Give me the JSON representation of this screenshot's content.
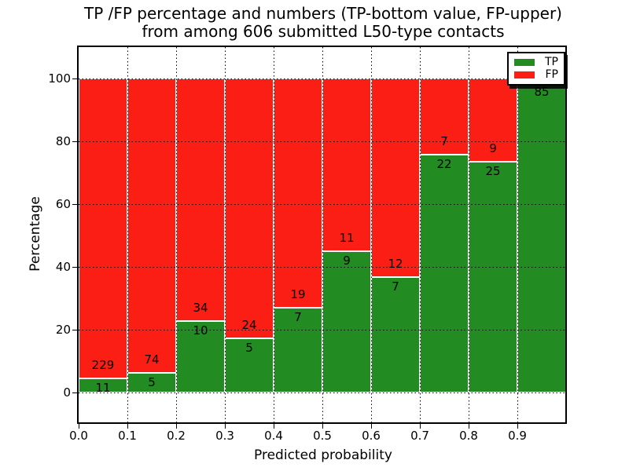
{
  "title": {
    "line1": "TP /FP percentage and numbers (TP-bottom value, FP-upper)",
    "line2": "from among 606 submitted L50-type contacts"
  },
  "x_axis": {
    "label": "Predicted probability",
    "ticks": [
      "0.0",
      "0.1",
      "0.2",
      "0.3",
      "0.4",
      "0.5",
      "0.6",
      "0.7",
      "0.8",
      "0.9"
    ]
  },
  "y_axis": {
    "label": "Percentage",
    "ticks": [
      "0",
      "20",
      "40",
      "60",
      "80",
      "100"
    ]
  },
  "legend": {
    "items": [
      {
        "label": "TP",
        "color": "#228b22"
      },
      {
        "label": "FP",
        "color": "#fb1e14"
      }
    ]
  },
  "colors": {
    "tp": "#228b22",
    "fp": "#fb1e14",
    "grid": "#000000",
    "background": "#ffffff"
  },
  "chart_data": {
    "type": "bar",
    "stacked": true,
    "normalized": "each bin stacks to 100%",
    "title": "TP /FP percentage and numbers (TP-bottom value, FP-upper) from among 606 submitted L50-type contacts",
    "xlabel": "Predicted probability",
    "ylabel": "Percentage",
    "xlim": [
      0.0,
      1.0
    ],
    "ylim": [
      -10,
      110
    ],
    "grid": "dotted, on top of bars",
    "legend_position": "upper right",
    "total_contacts": 606,
    "bin_edges": [
      0.0,
      0.1,
      0.2,
      0.3,
      0.4,
      0.5,
      0.6,
      0.7,
      0.8,
      0.9,
      1.0
    ],
    "categories": [
      "0.0-0.1",
      "0.1-0.2",
      "0.2-0.3",
      "0.3-0.4",
      "0.4-0.5",
      "0.5-0.6",
      "0.6-0.7",
      "0.7-0.8",
      "0.8-0.9",
      "0.9-1.0"
    ],
    "series": [
      {
        "name": "TP",
        "color": "#228b22",
        "counts": [
          11,
          5,
          10,
          5,
          7,
          9,
          7,
          22,
          25,
          85
        ],
        "pct": [
          4.6,
          6.3,
          22.7,
          17.2,
          26.9,
          45.0,
          36.8,
          75.9,
          73.5,
          98.8
        ]
      },
      {
        "name": "FP",
        "color": "#fb1e14",
        "counts": [
          229,
          74,
          34,
          24,
          19,
          11,
          12,
          7,
          9,
          1
        ],
        "pct": [
          95.4,
          93.7,
          77.3,
          82.8,
          73.1,
          55.0,
          63.2,
          24.1,
          26.5,
          1.2
        ]
      }
    ],
    "tp_labels": [
      "11",
      "5",
      "10",
      "5",
      "7",
      "9",
      "7",
      "22",
      "25",
      "85"
    ],
    "fp_labels": [
      "229",
      "74",
      "34",
      "24",
      "19",
      "11",
      "12",
      "7",
      "9",
      ""
    ]
  }
}
